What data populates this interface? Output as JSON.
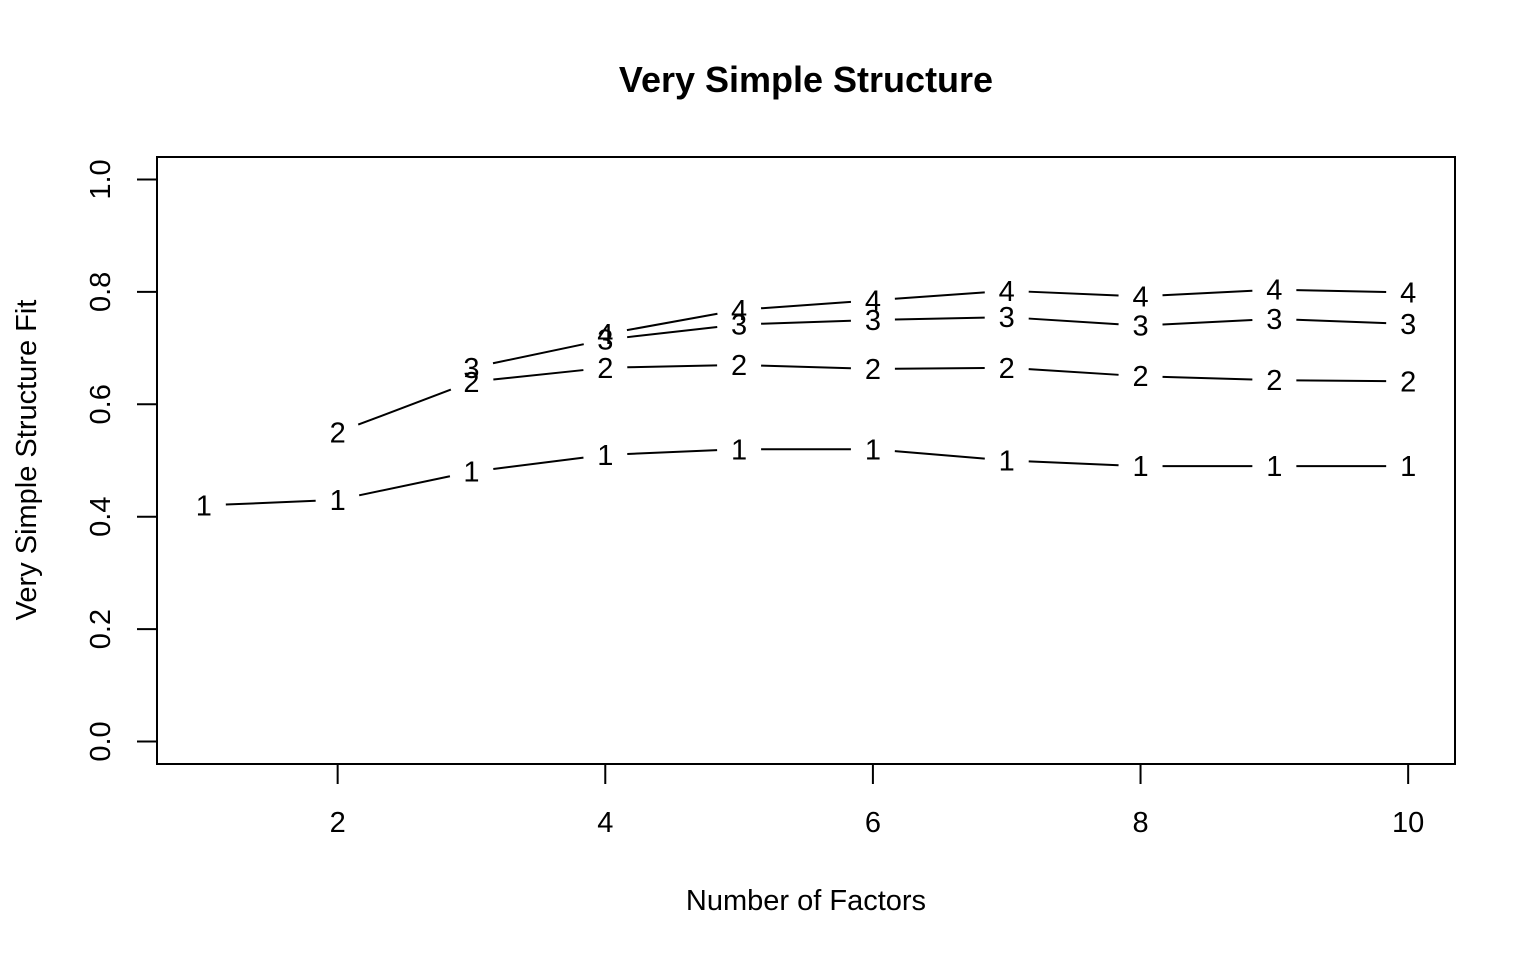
{
  "chart_data": {
    "type": "line",
    "title": "Very Simple Structure",
    "xlabel": "Number of Factors",
    "ylabel": "Very Simple Structure Fit",
    "xlim": [
      0.65,
      10.35
    ],
    "ylim": [
      -0.04,
      1.04
    ],
    "x_ticks": [
      "2",
      "4",
      "6",
      "8",
      "10"
    ],
    "y_ticks": [
      "0.0",
      "0.2",
      "0.4",
      "0.6",
      "0.8",
      "1.0"
    ],
    "grid": false,
    "legend": "none",
    "series": [
      {
        "marker": "1",
        "x": [
          1,
          2,
          3,
          4,
          5,
          6,
          7,
          8,
          9,
          10
        ],
        "values": [
          0.42,
          0.43,
          0.48,
          0.51,
          0.52,
          0.52,
          0.5,
          0.49,
          0.49,
          0.49
        ]
      },
      {
        "marker": "2",
        "x": [
          2,
          3,
          4,
          5,
          6,
          7,
          8,
          9,
          10
        ],
        "values": [
          0.55,
          0.64,
          0.665,
          0.67,
          0.663,
          0.665,
          0.65,
          0.643,
          0.641
        ]
      },
      {
        "marker": "3",
        "x": [
          3,
          4,
          5,
          6,
          7,
          8,
          9,
          10
        ],
        "values": [
          0.665,
          0.715,
          0.742,
          0.75,
          0.755,
          0.74,
          0.752,
          0.743
        ]
      },
      {
        "marker": "4",
        "x": [
          4,
          5,
          6,
          7,
          8,
          9,
          10
        ],
        "values": [
          0.725,
          0.768,
          0.785,
          0.802,
          0.792,
          0.804,
          0.799
        ]
      }
    ]
  }
}
